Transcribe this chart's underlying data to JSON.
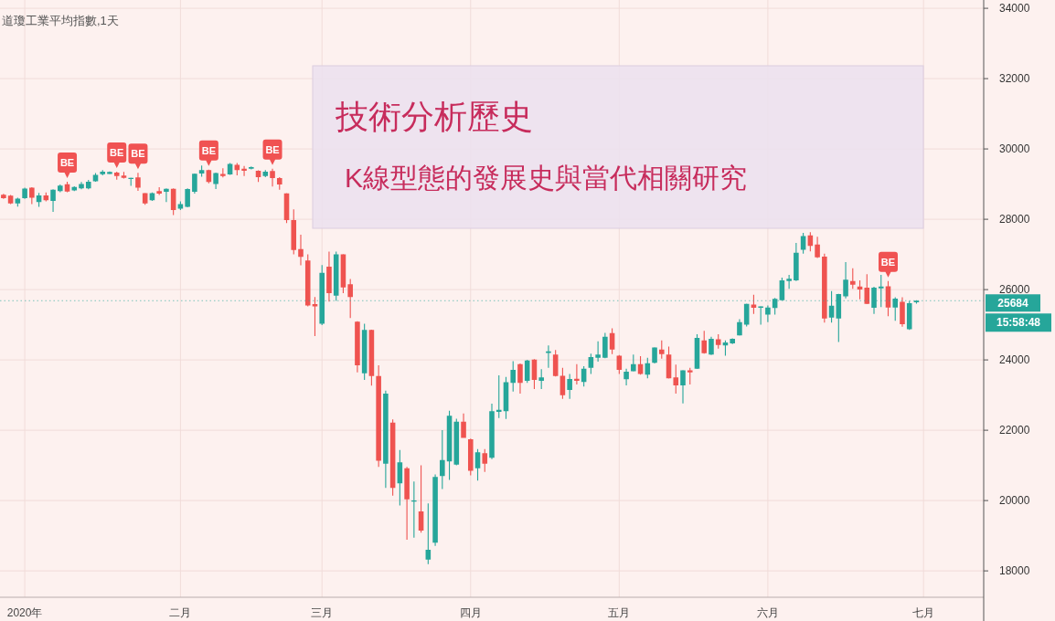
{
  "chart_data": {
    "type": "candlestick",
    "title": "技術分析歷史",
    "subtitle": "K線型態的發展史與當代相關研究",
    "annotations": [
      "道瓊工業平均指數,1天",
      "15:58:48",
      {
        "text": "BE",
        "y": 29070
      },
      {
        "text": "BE",
        "y": 29350
      },
      {
        "text": "BE",
        "y": 29320
      },
      {
        "text": "BE",
        "y": 29410
      },
      {
        "text": "BE",
        "y": 29440
      },
      {
        "text": "BE",
        "y": 26240
      }
    ],
    "categories": [
      null,
      null,
      null,
      "2020年",
      null,
      null,
      null,
      null,
      null,
      null,
      null,
      null,
      null,
      null,
      null,
      null,
      null,
      null,
      null,
      null,
      null,
      null,
      null,
      null,
      null,
      "二月",
      null,
      null,
      null,
      null,
      null,
      null,
      null,
      null,
      null,
      null,
      null,
      null,
      null,
      null,
      null,
      null,
      null,
      null,
      null,
      "三月",
      null,
      null,
      null,
      null,
      null,
      null,
      null,
      null,
      null,
      null,
      null,
      null,
      null,
      null,
      null,
      null,
      null,
      null,
      null,
      null,
      "四月",
      null,
      null,
      null,
      null,
      null,
      null,
      null,
      null,
      null,
      null,
      null,
      null,
      null,
      null,
      null,
      null,
      null,
      null,
      null,
      null,
      "五月",
      null,
      null,
      null,
      null,
      null,
      null,
      null,
      null,
      null,
      null,
      null,
      null,
      null,
      null,
      null,
      null,
      null,
      null,
      null,
      null,
      "六月",
      null,
      null,
      null,
      null,
      null,
      null,
      null,
      null,
      null,
      null,
      null,
      null,
      null,
      null,
      null,
      null,
      null,
      null,
      null,
      null,
      null,
      "七月",
      null,
      null,
      null,
      null,
      null,
      null,
      null,
      null
    ],
    "ohlc": [
      [
        28700,
        28720,
        28580,
        28600
      ],
      [
        28670,
        28690,
        28430,
        28450
      ],
      [
        28450,
        28610,
        28360,
        28590
      ],
      [
        28600,
        28900,
        28580,
        28875
      ],
      [
        28900,
        28910,
        28430,
        28610
      ],
      [
        28490,
        28750,
        28350,
        28680
      ],
      [
        28680,
        28760,
        28510,
        28540
      ],
      [
        28520,
        28850,
        28210,
        28840
      ],
      [
        28800,
        28990,
        28770,
        28960
      ],
      [
        28995,
        29070,
        28770,
        28790
      ],
      [
        28820,
        28940,
        28800,
        28920
      ],
      [
        28880,
        29060,
        28850,
        29000
      ],
      [
        28880,
        29120,
        28850,
        29070
      ],
      [
        29080,
        29315,
        29070,
        29265
      ],
      [
        29280,
        29400,
        29250,
        29350
      ],
      [
        29290,
        29360,
        29280,
        29345
      ],
      [
        29330,
        29350,
        29125,
        29230
      ],
      [
        29240,
        29345,
        29160,
        29180
      ],
      [
        29145,
        29185,
        28950,
        29180
      ],
      [
        29190,
        29320,
        28810,
        28900
      ],
      [
        28745,
        28750,
        28410,
        28450
      ],
      [
        28540,
        28760,
        28520,
        28745
      ],
      [
        28800,
        28910,
        28690,
        28730
      ],
      [
        28780,
        28880,
        28490,
        28865
      ],
      [
        28865,
        28880,
        28120,
        28260
      ],
      [
        28300,
        28510,
        28260,
        28430
      ],
      [
        28350,
        28880,
        28340,
        28860
      ],
      [
        28780,
        29300,
        28730,
        29295
      ],
      [
        29300,
        29530,
        29210,
        29400
      ],
      [
        29400,
        29410,
        29020,
        29060
      ],
      [
        29000,
        29325,
        28860,
        29315
      ],
      [
        29290,
        29450,
        29190,
        29230
      ],
      [
        29275,
        29600,
        29260,
        29575
      ],
      [
        29550,
        29600,
        29250,
        29400
      ],
      [
        29440,
        29515,
        29230,
        29380
      ],
      [
        29440,
        29500,
        29420,
        29480
      ],
      [
        29380,
        29390,
        29060,
        29200
      ],
      [
        29230,
        29400,
        29200,
        29350
      ],
      [
        29375,
        29440,
        28930,
        29170
      ],
      [
        29170,
        29200,
        28840,
        28990
      ],
      [
        28735,
        28740,
        27890,
        27975
      ],
      [
        27975,
        28280,
        27000,
        27125
      ],
      [
        27150,
        27560,
        26690,
        26930
      ],
      [
        26830,
        27000,
        25520,
        25550
      ],
      [
        25590,
        25790,
        24680,
        25525
      ],
      [
        25030,
        26700,
        24990,
        26475
      ],
      [
        26650,
        27080,
        25660,
        25900
      ],
      [
        25830,
        27080,
        25680,
        27000
      ],
      [
        27000,
        27010,
        25900,
        26060
      ],
      [
        26155,
        26300,
        25190,
        25790
      ],
      [
        25090,
        25100,
        23645,
        23845
      ],
      [
        23620,
        25030,
        23430,
        24855
      ],
      [
        24855,
        24860,
        23270,
        23540
      ],
      [
        23540,
        23845,
        20960,
        21135
      ],
      [
        21050,
        23125,
        20360,
        23040
      ],
      [
        22220,
        22305,
        20140,
        20360
      ],
      [
        20490,
        21440,
        19860,
        21090
      ],
      [
        20920,
        20960,
        18885,
        20035
      ],
      [
        19985,
        20545,
        18945,
        20000
      ],
      [
        19690,
        21005,
        19085,
        19145
      ],
      [
        18320,
        19920,
        18190,
        18600
      ],
      [
        18800,
        20745,
        18710,
        20675
      ],
      [
        20700,
        22000,
        20330,
        21150
      ],
      [
        21115,
        22555,
        20590,
        22415
      ],
      [
        21020,
        22330,
        21000,
        22245
      ],
      [
        22245,
        22475,
        21780,
        21785
      ],
      [
        21740,
        21760,
        20720,
        20850
      ],
      [
        20920,
        21465,
        20570,
        21375
      ],
      [
        21350,
        21465,
        20815,
        21050
      ],
      [
        21220,
        22755,
        21180,
        22545
      ],
      [
        22520,
        23560,
        22345,
        22580
      ],
      [
        22545,
        23515,
        22320,
        23365
      ],
      [
        23345,
        23965,
        23100,
        23715
      ],
      [
        23880,
        23900,
        23040,
        23345
      ],
      [
        23405,
        24000,
        23350,
        23985
      ],
      [
        24010,
        24020,
        23170,
        23430
      ],
      [
        23405,
        23735,
        23170,
        23505
      ],
      [
        24200,
        24410,
        23775,
        24240
      ],
      [
        24150,
        24280,
        23530,
        23540
      ],
      [
        23550,
        23775,
        22890,
        22995
      ],
      [
        23145,
        23600,
        22890,
        23455
      ],
      [
        23465,
        23880,
        23300,
        23405
      ],
      [
        23370,
        23820,
        23240,
        23750
      ],
      [
        23775,
        24180,
        23600,
        24080
      ],
      [
        24060,
        24530,
        23950,
        24150
      ],
      [
        24060,
        24770,
        24050,
        24660
      ],
      [
        24760,
        24900,
        24165,
        24295
      ],
      [
        24120,
        24140,
        23600,
        23715
      ],
      [
        23450,
        23750,
        23275,
        23665
      ],
      [
        23680,
        24150,
        23670,
        23880
      ],
      [
        23880,
        24105,
        23580,
        23600
      ],
      [
        23580,
        24060,
        23475,
        23905
      ],
      [
        23920,
        24360,
        23900,
        24355
      ],
      [
        24295,
        24555,
        24035,
        24165
      ],
      [
        24150,
        24380,
        23470,
        23475
      ],
      [
        23500,
        23865,
        23040,
        23275
      ],
      [
        23275,
        23710,
        22760,
        23705
      ],
      [
        23705,
        23775,
        23300,
        23645
      ],
      [
        23750,
        24730,
        23740,
        24625
      ],
      [
        24555,
        24830,
        24180,
        24190
      ],
      [
        24150,
        24660,
        24140,
        24600
      ],
      [
        24590,
        24730,
        24320,
        24425
      ],
      [
        24410,
        24555,
        24120,
        24495
      ],
      [
        24470,
        24610,
        24450,
        24600
      ],
      [
        24700,
        25160,
        24690,
        25075
      ],
      [
        25005,
        25600,
        24950,
        25595
      ],
      [
        25575,
        25855,
        25305,
        25480
      ],
      [
        25480,
        25530,
        25005,
        25525
      ],
      [
        25290,
        25550,
        25075,
        25490
      ],
      [
        25475,
        25765,
        25290,
        25735
      ],
      [
        25700,
        26340,
        25690,
        26260
      ],
      [
        26245,
        26415,
        26025,
        26310
      ],
      [
        26260,
        27325,
        26240,
        27045
      ],
      [
        27135,
        27610,
        27020,
        27525
      ],
      [
        27540,
        27630,
        27090,
        27240
      ],
      [
        27280,
        27500,
        26900,
        26920
      ],
      [
        26935,
        27020,
        25060,
        25180
      ],
      [
        25205,
        25955,
        25060,
        25540
      ],
      [
        25180,
        25880,
        24510,
        25870
      ],
      [
        25810,
        26780,
        25750,
        26285
      ],
      [
        26240,
        26605,
        26025,
        26140
      ],
      [
        26085,
        26260,
        25725,
        26000
      ],
      [
        26055,
        26440,
        25590,
        25595
      ],
      [
        25480,
        26080,
        25305,
        26055
      ],
      [
        26035,
        26415,
        25505,
        26085
      ],
      [
        26095,
        26240,
        25245,
        25490
      ],
      [
        25490,
        25785,
        25115,
        25740
      ],
      [
        25655,
        25785,
        24945,
        25015
      ],
      [
        24875,
        25680,
        24855,
        25610
      ],
      [
        25640,
        25700,
        25600,
        25684
      ],
      null,
      null,
      null,
      null,
      null,
      null,
      null,
      null,
      null
    ],
    "colors": [
      "#ef5350",
      "#ef5350",
      "#26a69a",
      "#26a69a",
      "#ef5350",
      "#26a69a",
      "#ef5350",
      "#26a69a",
      "#26a69a",
      "#ef5350",
      "#26a69a",
      "#26a69a",
      "#26a69a",
      "#26a69a",
      "#26a69a",
      "#26a69a",
      "#ef5350",
      "#ef5350",
      "#26a69a",
      "#ef5350",
      "#ef5350",
      "#26a69a",
      "#ef5350",
      "#26a69a",
      "#ef5350",
      "#26a69a",
      "#26a69a",
      "#26a69a",
      "#26a69a",
      "#ef5350",
      "#26a69a",
      "#ef5350",
      "#26a69a",
      "#ef5350",
      "#ef5350",
      "#26a69a",
      "#ef5350",
      "#26a69a",
      "#ef5350",
      "#ef5350",
      "#ef5350",
      "#ef5350",
      "#ef5350",
      "#ef5350",
      "#ef5350",
      "#26a69a",
      "#ef5350",
      "#26a69a",
      "#ef5350",
      "#ef5350",
      "#ef5350",
      "#26a69a",
      "#ef5350",
      "#ef5350",
      "#26a69a",
      "#ef5350",
      "#26a69a",
      "#ef5350",
      "#26a69a",
      "#ef5350",
      "#26a69a",
      "#26a69a",
      "#26a69a",
      "#26a69a",
      "#26a69a",
      "#ef5350",
      "#ef5350",
      "#26a69a",
      "#ef5350",
      "#26a69a",
      "#26a69a",
      "#26a69a",
      "#26a69a",
      "#ef5350",
      "#26a69a",
      "#ef5350",
      "#26a69a",
      "#26a69a",
      "#ef5350",
      "#ef5350",
      "#26a69a",
      "#ef5350",
      "#26a69a",
      "#26a69a",
      "#26a69a",
      "#26a69a",
      "#ef5350",
      "#ef5350",
      "#26a69a",
      "#26a69a",
      "#ef5350",
      "#26a69a",
      "#26a69a",
      "#ef5350",
      "#ef5350",
      "#ef5350",
      "#26a69a",
      "#ef5350",
      "#26a69a",
      "#ef5350",
      "#26a69a",
      "#ef5350",
      "#26a69a",
      "#26a69a",
      "#26a69a",
      "#26a69a",
      "#ef5350",
      "#26a69a",
      "#26a69a",
      "#26a69a",
      "#26a69a",
      "#26a69a",
      "#26a69a",
      "#26a69a",
      "#ef5350",
      "#ef5350",
      "#ef5350",
      "#26a69a",
      "#26a69a",
      "#26a69a",
      "#ef5350",
      "#ef5350",
      "#ef5350",
      "#26a69a",
      "#26a69a",
      "#ef5350",
      "#26a69a",
      "#ef5350",
      "#26a69a",
      "#26a69a",
      null,
      null,
      null,
      null,
      null,
      null,
      null,
      null,
      null
    ],
    "ylim": [
      17250,
      34080
    ],
    "yticks": [
      18000,
      20000,
      22000,
      24000,
      26000,
      28000,
      30000,
      32000,
      34000
    ],
    "grid": true,
    "ref_lines": [
      {
        "axis": "y",
        "value": 25684,
        "label": "25684",
        "color": "#26a69a",
        "line_style": "dotted"
      }
    ]
  }
}
